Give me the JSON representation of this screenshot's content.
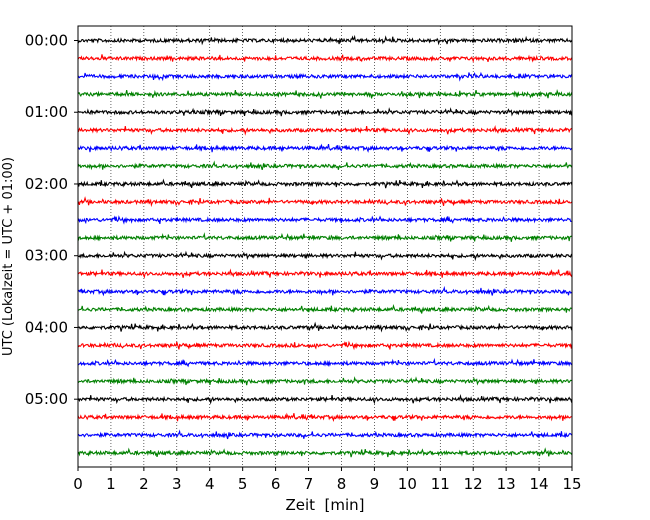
{
  "chart_data": {
    "type": "line",
    "title": "",
    "xlabel": "Zeit  [min]",
    "ylabel": "UTC (Lokalzeit = UTC + 01:00)",
    "xlim": [
      0,
      15
    ],
    "x_ticks": [
      "0",
      "1",
      "2",
      "3",
      "4",
      "5",
      "6",
      "7",
      "8",
      "9",
      "10",
      "11",
      "12",
      "13",
      "14",
      "15"
    ],
    "y_ticks": [
      "00:00",
      "01:00",
      "02:00",
      "03:00",
      "04:00",
      "05:00"
    ],
    "grid": "vertical dotted lines at each minute",
    "trace_interval_min": 15,
    "trace_start_utc": "00:00",
    "trace_end_utc": "05:45",
    "trace_count": 24,
    "color_cycle": [
      "#000000",
      "#ff0000",
      "#0000ff",
      "#008000"
    ],
    "series_note": "each horizontal trace is 15 minutes of seismogram; colors cycle black, red, blue, green"
  }
}
